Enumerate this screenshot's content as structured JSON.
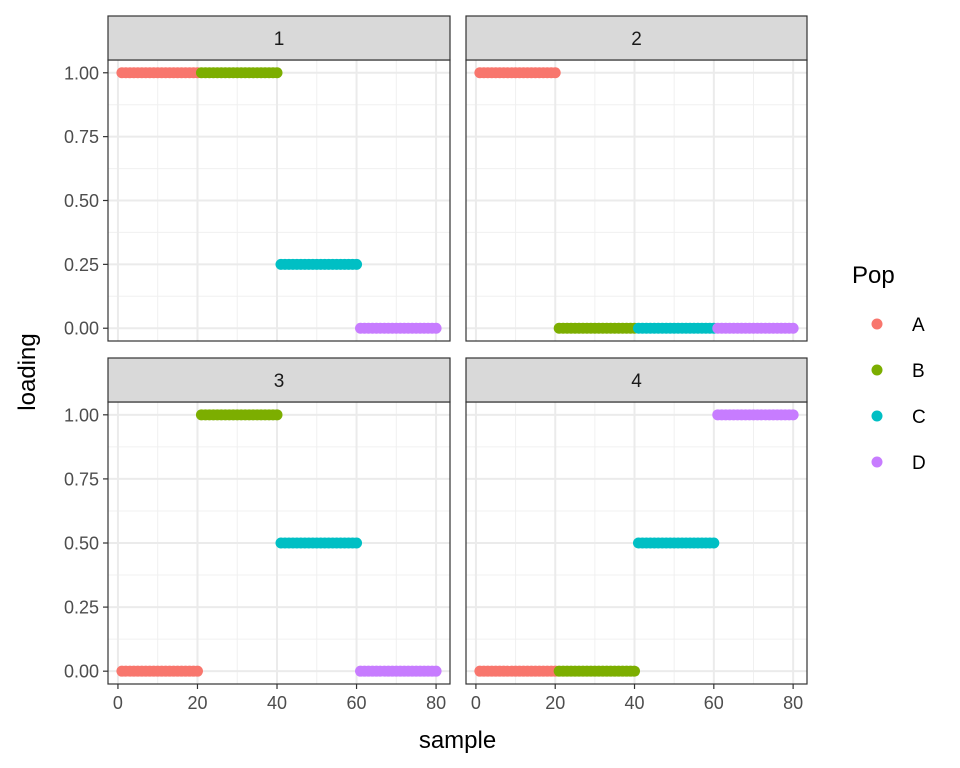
{
  "chart_data": {
    "type": "scatter",
    "xlabel": "sample",
    "ylabel": "loading",
    "xlim": [
      -2.5,
      83.5
    ],
    "ylim": [
      -0.05,
      1.05
    ],
    "x_ticks": [
      0,
      20,
      40,
      60,
      80
    ],
    "x_tick_labels": [
      "0",
      "20",
      "40",
      "60",
      "80"
    ],
    "y_ticks": [
      0,
      0.25,
      0.5,
      0.75,
      1
    ],
    "y_tick_labels": [
      "0.00",
      "0.25",
      "0.50",
      "0.75",
      "1.00"
    ],
    "grid": true,
    "legend": {
      "title": "Pop",
      "position": "right",
      "entries": [
        {
          "label": "A",
          "color": "#F8766D"
        },
        {
          "label": "B",
          "color": "#7CAE00"
        },
        {
          "label": "C",
          "color": "#00BFC4"
        },
        {
          "label": "D",
          "color": "#C77CFF"
        }
      ]
    },
    "groups": [
      {
        "name": "A",
        "x_range": [
          1,
          20
        ],
        "color": "#F8766D"
      },
      {
        "name": "B",
        "x_range": [
          21,
          40
        ],
        "color": "#7CAE00"
      },
      {
        "name": "C",
        "x_range": [
          41,
          60
        ],
        "color": "#00BFC4"
      },
      {
        "name": "D",
        "x_range": [
          61,
          80
        ],
        "color": "#C77CFF"
      }
    ],
    "panels": [
      {
        "label": "1",
        "loadings": {
          "A": 1.0,
          "B": 1.0,
          "C": 0.25,
          "D": 0.0
        }
      },
      {
        "label": "2",
        "loadings": {
          "A": 1.0,
          "B": 0.0,
          "C": 0.0,
          "D": 0.0
        }
      },
      {
        "label": "3",
        "loadings": {
          "A": 0.0,
          "B": 1.0,
          "C": 0.5,
          "D": 0.0
        }
      },
      {
        "label": "4",
        "loadings": {
          "A": 0.0,
          "B": 0.0,
          "C": 0.5,
          "D": 1.0
        }
      }
    ]
  }
}
